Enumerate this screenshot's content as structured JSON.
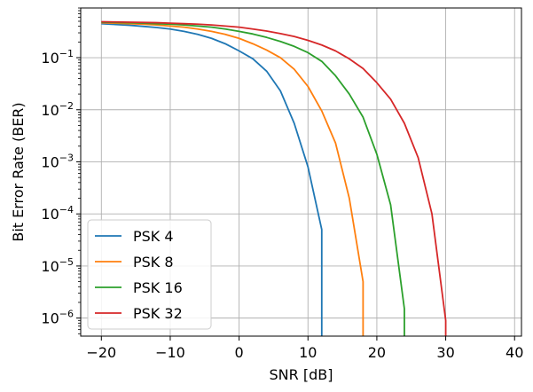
{
  "chart_data": {
    "type": "line",
    "title": "",
    "xlabel": "SNR [dB]",
    "ylabel": "Bit Error Rate (BER)",
    "xscale": "linear",
    "yscale": "log",
    "xlim": [
      -23,
      41
    ],
    "ylim": [
      4.5e-07,
      0.9
    ],
    "grid": true,
    "legend_position": "lower-left",
    "x_ticks": [
      -20,
      -10,
      0,
      10,
      20,
      30,
      40
    ],
    "x_tick_labels": [
      "−20",
      "−10",
      "0",
      "10",
      "20",
      "30",
      "40"
    ],
    "y_ticks": [
      1e-06,
      1e-05,
      0.0001,
      0.001,
      0.01,
      0.1
    ],
    "y_tick_labels": [
      {
        "base": "10",
        "exp": "−6"
      },
      {
        "base": "10",
        "exp": "−5"
      },
      {
        "base": "10",
        "exp": "−4"
      },
      {
        "base": "10",
        "exp": "−3"
      },
      {
        "base": "10",
        "exp": "−2"
      },
      {
        "base": "10",
        "exp": "−1"
      }
    ],
    "series": [
      {
        "name": "PSK 4",
        "color": "#1f77b4",
        "x": [
          -20,
          -18,
          -16,
          -14,
          -12,
          -10,
          -8,
          -6,
          -4,
          -2,
          0,
          2,
          4,
          6,
          8,
          10,
          12,
          12
        ],
        "y": [
          0.45,
          0.435,
          0.42,
          0.4,
          0.38,
          0.355,
          0.32,
          0.28,
          0.235,
          0.185,
          0.135,
          0.095,
          0.055,
          0.023,
          0.0055,
          0.0008,
          5e-05,
          4.5e-07
        ]
      },
      {
        "name": "PSK 8",
        "color": "#ff7f0e",
        "x": [
          -20,
          -18,
          -16,
          -14,
          -12,
          -10,
          -8,
          -6,
          -4,
          -2,
          0,
          2,
          4,
          6,
          8,
          10,
          12,
          14,
          16,
          18,
          18
        ],
        "y": [
          0.47,
          0.46,
          0.45,
          0.44,
          0.425,
          0.405,
          0.385,
          0.355,
          0.32,
          0.28,
          0.235,
          0.185,
          0.14,
          0.1,
          0.06,
          0.028,
          0.0095,
          0.0023,
          0.0002,
          5e-06,
          4.5e-07
        ]
      },
      {
        "name": "PSK 16",
        "color": "#2ca02c",
        "x": [
          -20,
          -18,
          -16,
          -14,
          -12,
          -10,
          -8,
          -6,
          -4,
          -2,
          0,
          2,
          4,
          6,
          8,
          10,
          12,
          14,
          16,
          18,
          20,
          22,
          24,
          24
        ],
        "y": [
          0.48,
          0.475,
          0.47,
          0.46,
          0.45,
          0.44,
          0.425,
          0.405,
          0.385,
          0.355,
          0.32,
          0.285,
          0.245,
          0.205,
          0.165,
          0.125,
          0.085,
          0.045,
          0.02,
          0.0072,
          0.0014,
          0.00015,
          1.5e-06,
          4.5e-07
        ]
      },
      {
        "name": "PSK 32",
        "color": "#d62728",
        "x": [
          -20,
          -18,
          -16,
          -14,
          -12,
          -10,
          -8,
          -6,
          -4,
          -2,
          0,
          2,
          4,
          6,
          8,
          10,
          12,
          14,
          16,
          18,
          20,
          22,
          24,
          26,
          28,
          30,
          30
        ],
        "y": [
          0.49,
          0.485,
          0.48,
          0.475,
          0.47,
          0.46,
          0.45,
          0.44,
          0.425,
          0.405,
          0.385,
          0.355,
          0.325,
          0.29,
          0.255,
          0.215,
          0.175,
          0.135,
          0.095,
          0.062,
          0.033,
          0.016,
          0.0055,
          0.0012,
          0.0001,
          9e-07,
          4.5e-07
        ]
      }
    ]
  }
}
